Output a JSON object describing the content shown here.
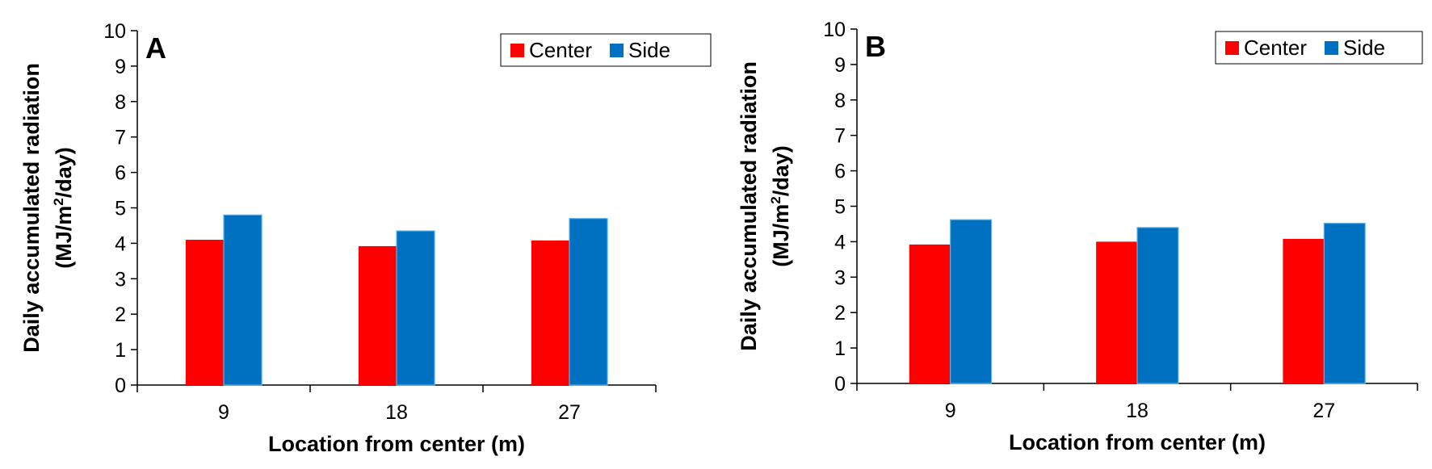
{
  "chart_data": [
    {
      "type": "bar",
      "panel_label": "A",
      "categories": [
        "9",
        "18",
        "27"
      ],
      "series": [
        {
          "name": "Center",
          "values": [
            4.1,
            3.92,
            4.08
          ]
        },
        {
          "name": "Side",
          "values": [
            4.8,
            4.35,
            4.7
          ]
        }
      ],
      "xlabel": "Location from center (m)",
      "ylabel_line1": "Daily accumulated radiation",
      "ylabel_line2_prefix": "(MJ/m",
      "ylabel_line2_sup": "2",
      "ylabel_line2_suffix": "/day)",
      "ylim": [
        0,
        10
      ],
      "yticks": [
        "0",
        "1",
        "2",
        "3",
        "4",
        "5",
        "6",
        "7",
        "8",
        "9",
        "10"
      ],
      "grid": false,
      "legend": "top-right"
    },
    {
      "type": "bar",
      "panel_label": "B",
      "categories": [
        "9",
        "18",
        "27"
      ],
      "series": [
        {
          "name": "Center",
          "values": [
            3.92,
            4.0,
            4.08
          ]
        },
        {
          "name": "Side",
          "values": [
            4.62,
            4.4,
            4.52
          ]
        }
      ],
      "xlabel": "Location from center (m)",
      "ylabel_line1": "Daily accumulated radiation",
      "ylabel_line2_prefix": "(MJ/m",
      "ylabel_line2_sup": "2",
      "ylabel_line2_suffix": "/day)",
      "ylim": [
        0,
        10
      ],
      "yticks": [
        "0",
        "1",
        "2",
        "3",
        "4",
        "5",
        "6",
        "7",
        "8",
        "9",
        "10"
      ],
      "grid": false,
      "legend": "top-right"
    }
  ],
  "colors": {
    "center": "#ff0000",
    "side": "#0070c0",
    "side_edge": "#5fb4e8",
    "axis": "#000000"
  }
}
